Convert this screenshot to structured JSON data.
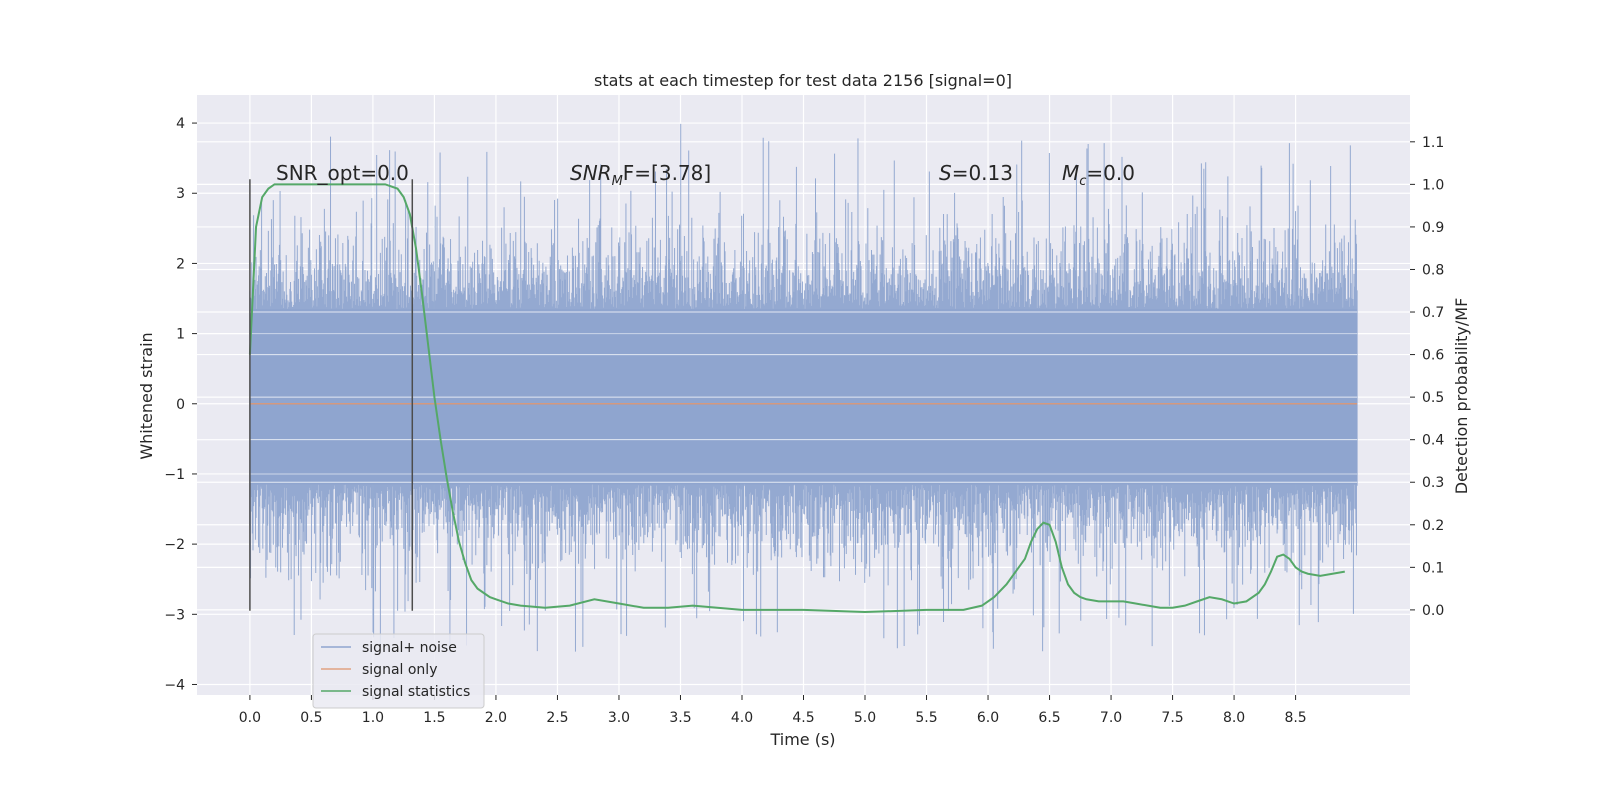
{
  "chart_data": {
    "type": "line",
    "title": "stats at each timestep for test data 2156 [signal=0]",
    "xlabel": "Time (s)",
    "ylabel": "Whitened strain",
    "ylabel_right": "Detection probability/MF",
    "xlim": [
      -0.43,
      9.43
    ],
    "ylim": [
      -4.15,
      4.4
    ],
    "ylim_right": [
      -0.2,
      1.21
    ],
    "x_ticks": [
      0.0,
      0.5,
      1.0,
      1.5,
      2.0,
      2.5,
      3.0,
      3.5,
      4.0,
      4.5,
      5.0,
      5.5,
      6.0,
      6.5,
      7.0,
      7.5,
      8.0,
      8.5
    ],
    "x_tick_labels": [
      "0.0",
      "0.5",
      "1.0",
      "1.5",
      "2.0",
      "2.5",
      "3.0",
      "3.5",
      "4.0",
      "4.5",
      "5.0",
      "5.5",
      "6.0",
      "6.5",
      "7.0",
      "7.5",
      "8.0",
      "8.5"
    ],
    "y_ticks": [
      4,
      3,
      2,
      1,
      0,
      -1,
      -2,
      -3,
      -4
    ],
    "y_tick_labels": [
      "4",
      "3",
      "2",
      "1",
      "0",
      "−1",
      "−2",
      "−3",
      "−4"
    ],
    "y_right_ticks": [
      1.1,
      1.0,
      0.9,
      0.8,
      0.7,
      0.6,
      0.5,
      0.4,
      0.3,
      0.2,
      0.1,
      0.0
    ],
    "y_right_tick_labels": [
      "1.1",
      "1.0",
      "0.9",
      "0.8",
      "0.7",
      "0.6",
      "0.5",
      "0.4",
      "0.3",
      "0.2",
      "0.1",
      "0.0"
    ],
    "grid": true,
    "legend_position": "lower-left",
    "series": [
      {
        "name": "signal+ noise",
        "color": "#8fa5cf",
        "axis": "left",
        "x_range": [
          0.0,
          9.0
        ],
        "core_band": [
          -1.15,
          1.35
        ],
        "peak_range": [
          -3.8,
          4.05
        ]
      },
      {
        "name": "signal only",
        "color": "#dd8452",
        "axis": "left",
        "x": [
          0.0,
          9.0
        ],
        "y": [
          0.0,
          0.0
        ]
      },
      {
        "name": "signal statistics",
        "color": "#55a868",
        "axis": "right",
        "x": [
          0.0,
          0.05,
          0.1,
          0.15,
          0.2,
          0.3,
          0.5,
          0.8,
          1.0,
          1.1,
          1.2,
          1.25,
          1.3,
          1.35,
          1.4,
          1.45,
          1.5,
          1.55,
          1.6,
          1.65,
          1.7,
          1.75,
          1.8,
          1.85,
          1.9,
          1.95,
          2.0,
          2.1,
          2.2,
          2.4,
          2.6,
          2.8,
          3.0,
          3.2,
          3.4,
          3.6,
          3.8,
          4.0,
          4.5,
          5.0,
          5.5,
          5.8,
          5.95,
          6.05,
          6.15,
          6.25,
          6.3,
          6.35,
          6.4,
          6.45,
          6.5,
          6.55,
          6.6,
          6.65,
          6.7,
          6.75,
          6.8,
          6.9,
          7.0,
          7.1,
          7.2,
          7.3,
          7.4,
          7.5,
          7.6,
          7.7,
          7.8,
          7.9,
          8.0,
          8.1,
          8.2,
          8.25,
          8.3,
          8.35,
          8.4,
          8.45,
          8.5,
          8.55,
          8.6,
          8.7,
          8.8,
          8.9
        ],
        "y": [
          0.6,
          0.9,
          0.97,
          0.99,
          1.0,
          1.0,
          1.0,
          1.0,
          1.0,
          1.0,
          0.99,
          0.97,
          0.93,
          0.85,
          0.74,
          0.62,
          0.5,
          0.4,
          0.31,
          0.23,
          0.16,
          0.11,
          0.07,
          0.05,
          0.04,
          0.03,
          0.025,
          0.015,
          0.01,
          0.005,
          0.01,
          0.025,
          0.015,
          0.005,
          0.005,
          0.01,
          0.005,
          0.0,
          0.0,
          -0.005,
          0.0,
          0.0,
          0.01,
          0.03,
          0.06,
          0.1,
          0.12,
          0.16,
          0.19,
          0.205,
          0.2,
          0.16,
          0.1,
          0.06,
          0.04,
          0.03,
          0.025,
          0.02,
          0.02,
          0.02,
          0.015,
          0.01,
          0.005,
          0.005,
          0.01,
          0.02,
          0.03,
          0.025,
          0.015,
          0.02,
          0.04,
          0.06,
          0.09,
          0.125,
          0.13,
          0.12,
          0.1,
          0.09,
          0.085,
          0.08,
          0.085,
          0.09
        ]
      }
    ],
    "vertical_markers": [
      {
        "x": 0.0,
        "y_range": [
          -2.95,
          3.2
        ],
        "color": "#4d4d4d"
      },
      {
        "x": 1.32,
        "y_range": [
          -2.95,
          3.2
        ],
        "color": "#4d4d4d"
      }
    ],
    "annotations": [
      {
        "text": "SNR_opt=0.0",
        "x": 0.2,
        "y": 3.2
      },
      {
        "text_main": "SNR",
        "text_sub": "M",
        "text_tail": "F=[3.78]",
        "x": 2.6,
        "y": 3.2
      },
      {
        "text_main": "S",
        "text_tail": "=0.13",
        "x": 5.6,
        "y": 3.2
      },
      {
        "text_main": "M",
        "text_sub": "c",
        "text_tail": "=0.0",
        "x": 6.6,
        "y": 3.2
      }
    ],
    "style": {
      "plot_background": "#eaeaf2",
      "grid_color": "#ffffff"
    }
  }
}
